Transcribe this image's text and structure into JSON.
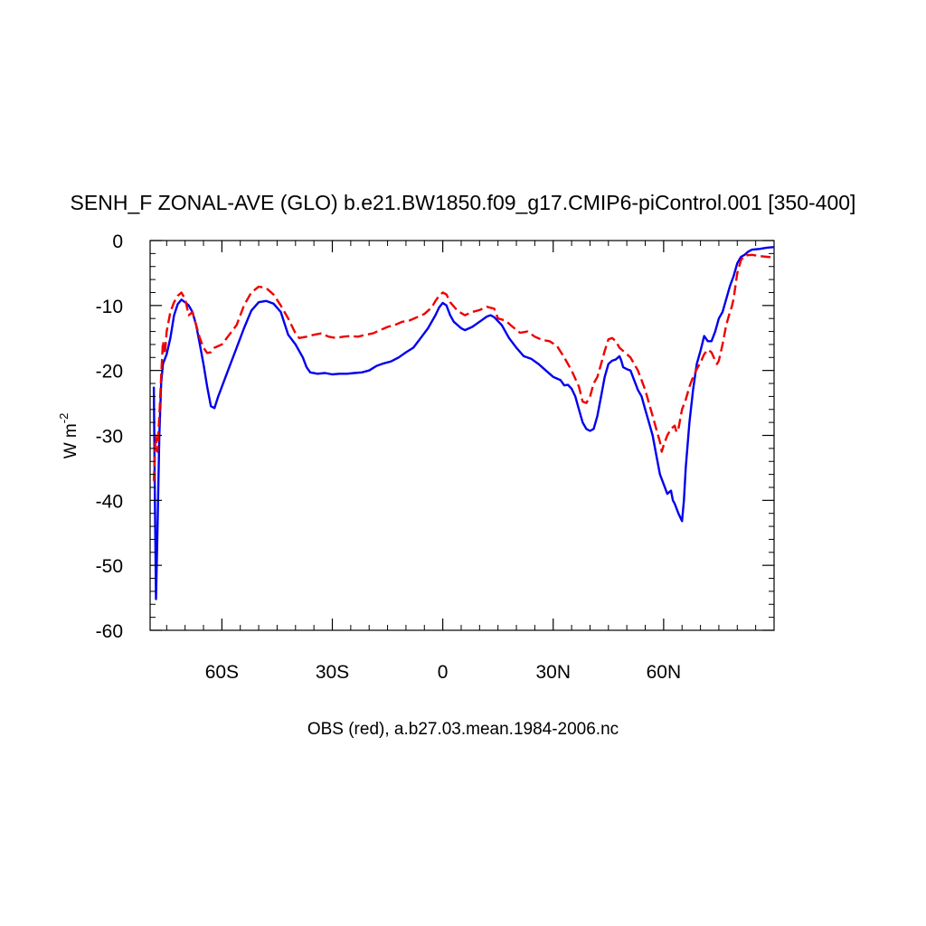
{
  "chart_data": {
    "type": "line",
    "title": "SENH_F ZONAL-AVE (GLO) b.e21.BW1850.f09_g17.CMIP6-piControl.001 [350-400]",
    "ylabel_base": "W m",
    "ylabel_exponent": "-2",
    "xlabel": "OBS (red), a.b27.03.mean.1984-2006.nc",
    "xlim": [
      -79.5,
      90
    ],
    "ylim": [
      -60,
      0
    ],
    "x_ticks": [
      {
        "value": -60,
        "label": "60S"
      },
      {
        "value": -30,
        "label": "30S"
      },
      {
        "value": 0,
        "label": "0"
      },
      {
        "value": 30,
        "label": "30N"
      },
      {
        "value": 60,
        "label": "60N"
      }
    ],
    "y_ticks": [
      {
        "value": 0,
        "label": "0"
      },
      {
        "value": -10,
        "label": "-10"
      },
      {
        "value": -20,
        "label": "-20"
      },
      {
        "value": -30,
        "label": "-30"
      },
      {
        "value": -40,
        "label": "-40"
      },
      {
        "value": -50,
        "label": "-50"
      },
      {
        "value": -60,
        "label": "-60"
      }
    ],
    "series": [
      {
        "color": "#0000ee",
        "style": "solid",
        "points": [
          [
            -78.5,
            -22.5
          ],
          [
            -78.2,
            -40
          ],
          [
            -77.9,
            -55.2
          ],
          [
            -77.5,
            -45
          ],
          [
            -77,
            -30
          ],
          [
            -76.5,
            -22
          ],
          [
            -76,
            -19
          ],
          [
            -75,
            -17.5
          ],
          [
            -74,
            -15
          ],
          [
            -73,
            -11.5
          ],
          [
            -72,
            -9.8
          ],
          [
            -71,
            -9.1
          ],
          [
            -70,
            -9.5
          ],
          [
            -69,
            -10
          ],
          [
            -68,
            -11
          ],
          [
            -67,
            -13
          ],
          [
            -66,
            -16
          ],
          [
            -65,
            -19
          ],
          [
            -64,
            -22.5
          ],
          [
            -63,
            -25.5
          ],
          [
            -62,
            -25.8
          ],
          [
            -61,
            -24
          ],
          [
            -60,
            -22.5
          ],
          [
            -58,
            -19.5
          ],
          [
            -56,
            -16.5
          ],
          [
            -54,
            -13.5
          ],
          [
            -52,
            -10.8
          ],
          [
            -50,
            -9.5
          ],
          [
            -48,
            -9.3
          ],
          [
            -46,
            -9.7
          ],
          [
            -44,
            -11
          ],
          [
            -42,
            -14.5
          ],
          [
            -40,
            -16
          ],
          [
            -38,
            -18
          ],
          [
            -37,
            -19.5
          ],
          [
            -36,
            -20.3
          ],
          [
            -34,
            -20.5
          ],
          [
            -32,
            -20.4
          ],
          [
            -30,
            -20.6
          ],
          [
            -28,
            -20.5
          ],
          [
            -26,
            -20.5
          ],
          [
            -24,
            -20.4
          ],
          [
            -22,
            -20.3
          ],
          [
            -20,
            -20
          ],
          [
            -18,
            -19.3
          ],
          [
            -16,
            -18.9
          ],
          [
            -14,
            -18.6
          ],
          [
            -12,
            -18
          ],
          [
            -10,
            -17.2
          ],
          [
            -8,
            -16.5
          ],
          [
            -6,
            -15
          ],
          [
            -4,
            -13.5
          ],
          [
            -2,
            -11.5
          ],
          [
            -1,
            -10.3
          ],
          [
            0,
            -9.6
          ],
          [
            1,
            -10
          ],
          [
            2,
            -11.5
          ],
          [
            3,
            -12.5
          ],
          [
            4,
            -13
          ],
          [
            5,
            -13.5
          ],
          [
            6,
            -13.8
          ],
          [
            8,
            -13.3
          ],
          [
            10,
            -12.5
          ],
          [
            12,
            -11.7
          ],
          [
            13,
            -11.5
          ],
          [
            14,
            -11.8
          ],
          [
            16,
            -13
          ],
          [
            18,
            -15
          ],
          [
            20,
            -16.5
          ],
          [
            22,
            -17.8
          ],
          [
            24,
            -18.2
          ],
          [
            26,
            -19
          ],
          [
            28,
            -20
          ],
          [
            30,
            -21
          ],
          [
            32,
            -21.5
          ],
          [
            33,
            -22.3
          ],
          [
            34,
            -22.2
          ],
          [
            35,
            -22.8
          ],
          [
            36,
            -24
          ],
          [
            37,
            -26
          ],
          [
            38,
            -28
          ],
          [
            39,
            -29
          ],
          [
            40,
            -29.3
          ],
          [
            41,
            -29
          ],
          [
            42,
            -27
          ],
          [
            43,
            -24
          ],
          [
            44,
            -21
          ],
          [
            45,
            -19
          ],
          [
            46,
            -18.5
          ],
          [
            47,
            -18.3
          ],
          [
            48,
            -17.8
          ],
          [
            48.5,
            -18.5
          ],
          [
            49,
            -19.5
          ],
          [
            50,
            -19.8
          ],
          [
            51,
            -20
          ],
          [
            52,
            -21.5
          ],
          [
            53,
            -23
          ],
          [
            54,
            -24
          ],
          [
            55,
            -26
          ],
          [
            56,
            -28
          ],
          [
            57,
            -30
          ],
          [
            58,
            -33
          ],
          [
            59,
            -36
          ],
          [
            60,
            -37.5
          ],
          [
            61,
            -39
          ],
          [
            62,
            -38.5
          ],
          [
            62.5,
            -40
          ],
          [
            63,
            -40.5
          ],
          [
            64,
            -42
          ],
          [
            65,
            -43.2
          ],
          [
            65.5,
            -40
          ],
          [
            66,
            -35
          ],
          [
            67,
            -28
          ],
          [
            68,
            -23
          ],
          [
            69,
            -19
          ],
          [
            70,
            -17
          ],
          [
            71,
            -14.7
          ],
          [
            72,
            -15.5
          ],
          [
            73,
            -15.5
          ],
          [
            74,
            -14
          ],
          [
            75,
            -12
          ],
          [
            76,
            -11
          ],
          [
            77,
            -9
          ],
          [
            78,
            -7
          ],
          [
            79,
            -5.5
          ],
          [
            80,
            -3.5
          ],
          [
            81,
            -2.5
          ],
          [
            82,
            -2.2
          ],
          [
            83,
            -1.7
          ],
          [
            84,
            -1.4
          ],
          [
            86,
            -1.3
          ],
          [
            88,
            -1.1
          ],
          [
            90,
            -1
          ]
        ]
      },
      {
        "color": "#ee0000",
        "style": "dashed",
        "points": [
          [
            -78.5,
            -37
          ],
          [
            -78,
            -30
          ],
          [
            -77.5,
            -32.5
          ],
          [
            -77,
            -27
          ],
          [
            -76.5,
            -21
          ],
          [
            -76,
            -15.5
          ],
          [
            -75.5,
            -17.5
          ],
          [
            -75,
            -14
          ],
          [
            -74,
            -11
          ],
          [
            -73,
            -9.5
          ],
          [
            -72,
            -8.5
          ],
          [
            -71,
            -8
          ],
          [
            -70,
            -9
          ],
          [
            -69,
            -11.5
          ],
          [
            -68,
            -11
          ],
          [
            -67,
            -13
          ],
          [
            -66,
            -15
          ],
          [
            -65,
            -16.5
          ],
          [
            -64,
            -17.3
          ],
          [
            -63,
            -17.2
          ],
          [
            -62,
            -16.5
          ],
          [
            -60,
            -16
          ],
          [
            -58,
            -14.5
          ],
          [
            -56,
            -13
          ],
          [
            -54,
            -10
          ],
          [
            -52,
            -8
          ],
          [
            -50,
            -7.1
          ],
          [
            -48,
            -7.3
          ],
          [
            -46,
            -8.3
          ],
          [
            -44,
            -10
          ],
          [
            -42,
            -12
          ],
          [
            -40,
            -14.3
          ],
          [
            -39,
            -15
          ],
          [
            -37,
            -14.8
          ],
          [
            -35,
            -14.5
          ],
          [
            -33,
            -14.3
          ],
          [
            -31,
            -14.8
          ],
          [
            -29,
            -15
          ],
          [
            -27,
            -14.8
          ],
          [
            -25,
            -14.7
          ],
          [
            -23,
            -14.8
          ],
          [
            -21,
            -14.5
          ],
          [
            -19,
            -14.3
          ],
          [
            -17,
            -13.8
          ],
          [
            -15,
            -13.3
          ],
          [
            -13,
            -13
          ],
          [
            -11,
            -12.5
          ],
          [
            -9,
            -12.3
          ],
          [
            -7,
            -11.8
          ],
          [
            -5,
            -11.3
          ],
          [
            -3,
            -10.3
          ],
          [
            -2,
            -9.3
          ],
          [
            -1,
            -8.5
          ],
          [
            0,
            -8
          ],
          [
            1,
            -8.3
          ],
          [
            2,
            -9.5
          ],
          [
            4,
            -10.8
          ],
          [
            6,
            -11.5
          ],
          [
            8,
            -11
          ],
          [
            10,
            -10.7
          ],
          [
            12,
            -10.2
          ],
          [
            14,
            -10.5
          ],
          [
            15,
            -12
          ],
          [
            17,
            -12.3
          ],
          [
            19,
            -13.3
          ],
          [
            21,
            -14.2
          ],
          [
            23,
            -14
          ],
          [
            25,
            -14.8
          ],
          [
            27,
            -15.3
          ],
          [
            29,
            -15.5
          ],
          [
            31,
            -16.2
          ],
          [
            33,
            -18
          ],
          [
            35,
            -20
          ],
          [
            37,
            -22.5
          ],
          [
            38,
            -24.8
          ],
          [
            39,
            -25
          ],
          [
            40,
            -24
          ],
          [
            41,
            -22
          ],
          [
            42,
            -21
          ],
          [
            43,
            -19
          ],
          [
            44,
            -17
          ],
          [
            45,
            -15.2
          ],
          [
            46,
            -15
          ],
          [
            47,
            -15.5
          ],
          [
            48,
            -16.5
          ],
          [
            49,
            -17
          ],
          [
            50,
            -17.5
          ],
          [
            51,
            -18
          ],
          [
            52,
            -19
          ],
          [
            53,
            -20
          ],
          [
            54,
            -21.5
          ],
          [
            55,
            -23
          ],
          [
            56,
            -25
          ],
          [
            57,
            -27
          ],
          [
            58,
            -29
          ],
          [
            59,
            -31
          ],
          [
            59.5,
            -32.5
          ],
          [
            60,
            -31.5
          ],
          [
            61,
            -30
          ],
          [
            62,
            -29
          ],
          [
            63,
            -28.5
          ],
          [
            63.5,
            -29.5
          ],
          [
            64,
            -29
          ],
          [
            65,
            -26
          ],
          [
            66,
            -24.5
          ],
          [
            67,
            -22.5
          ],
          [
            68,
            -21
          ],
          [
            69,
            -19.8
          ],
          [
            70,
            -18.8
          ],
          [
            71,
            -17.5
          ],
          [
            72,
            -16.8
          ],
          [
            73,
            -17.2
          ],
          [
            74,
            -18.5
          ],
          [
            74.5,
            -19
          ],
          [
            75,
            -18.5
          ],
          [
            76,
            -16
          ],
          [
            77,
            -13
          ],
          [
            78,
            -11
          ],
          [
            78.5,
            -10.2
          ],
          [
            79,
            -9
          ],
          [
            80,
            -5
          ],
          [
            81,
            -3
          ],
          [
            82,
            -2.3
          ],
          [
            84,
            -2.2
          ],
          [
            86,
            -2.4
          ],
          [
            88,
            -2.5
          ],
          [
            90,
            -2.6
          ]
        ]
      }
    ]
  }
}
